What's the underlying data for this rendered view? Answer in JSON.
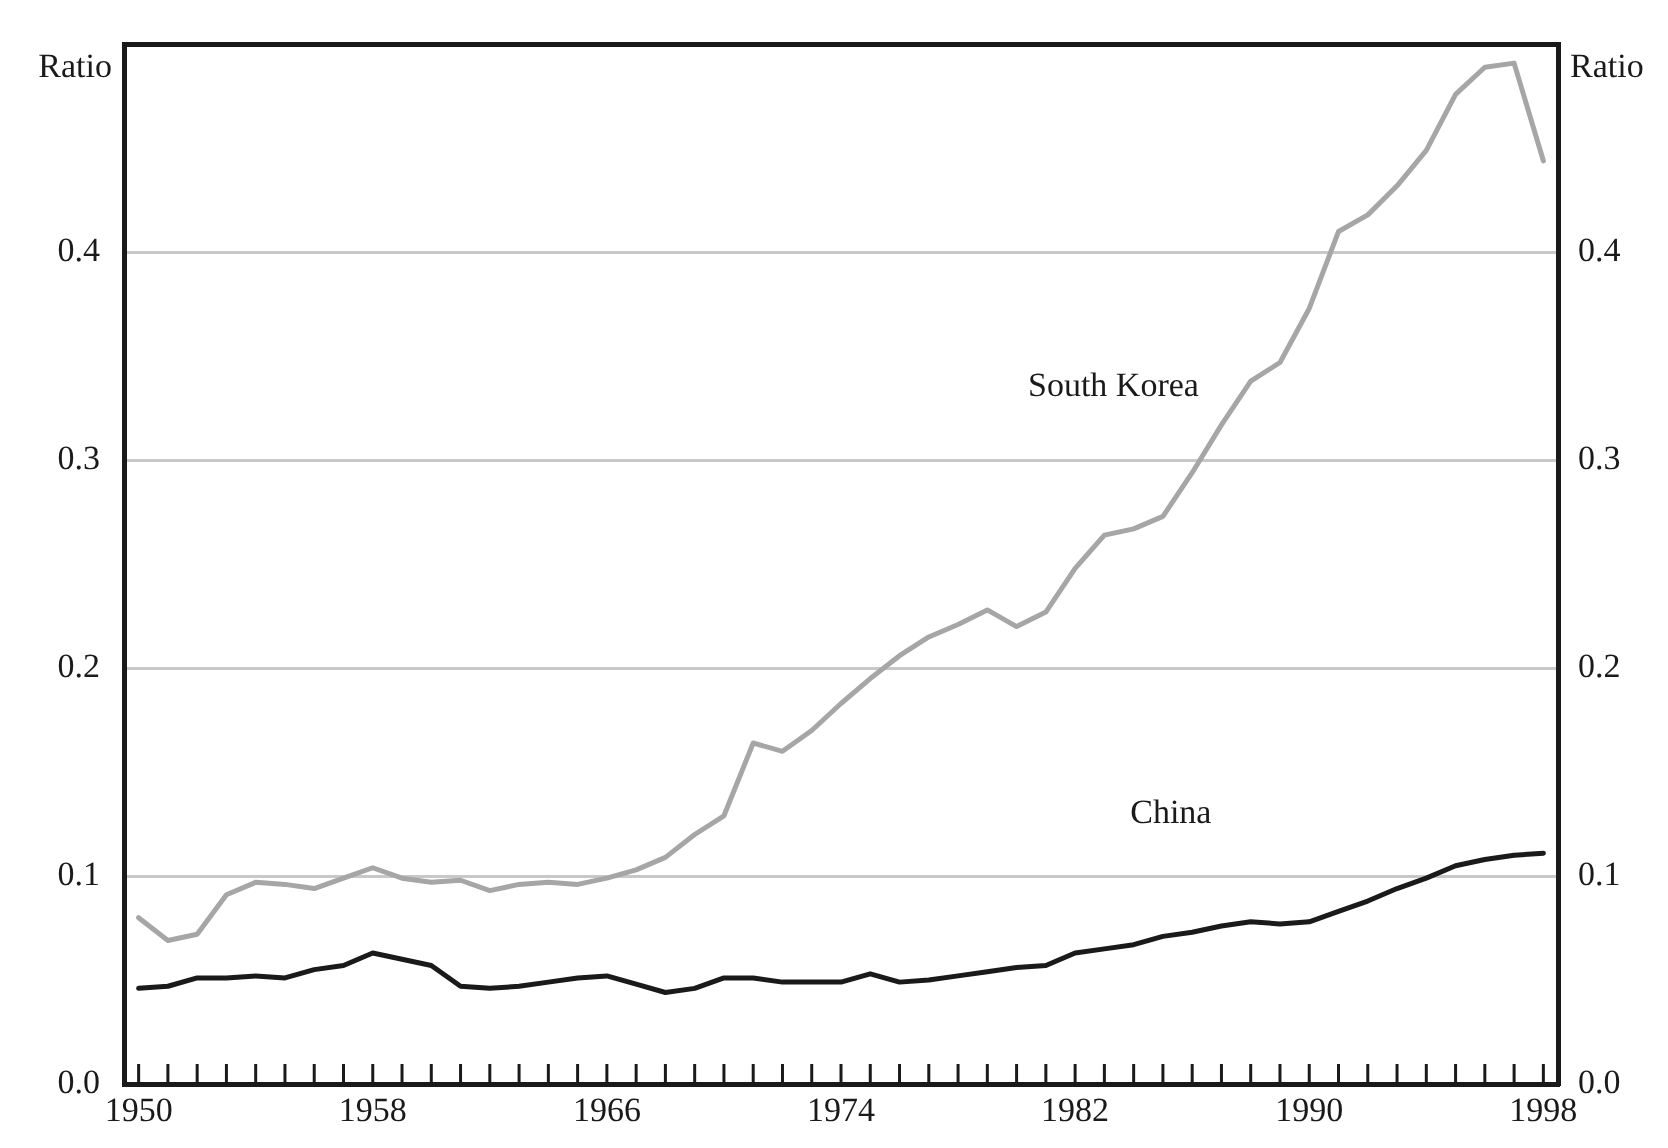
{
  "chart_data": {
    "type": "line",
    "ylabel": "Ratio",
    "y2label": "Ratio",
    "x": [
      1950,
      1951,
      1952,
      1953,
      1954,
      1955,
      1956,
      1957,
      1958,
      1959,
      1960,
      1961,
      1962,
      1963,
      1964,
      1965,
      1966,
      1967,
      1968,
      1969,
      1970,
      1971,
      1972,
      1973,
      1974,
      1975,
      1976,
      1977,
      1978,
      1979,
      1980,
      1981,
      1982,
      1983,
      1984,
      1985,
      1986,
      1987,
      1988,
      1989,
      1990,
      1991,
      1992,
      1993,
      1994,
      1995,
      1996,
      1997,
      1998
    ],
    "series": [
      {
        "name": "South Korea",
        "color": "#a6a6a6",
        "values": [
          0.08,
          0.069,
          0.072,
          0.091,
          0.097,
          0.096,
          0.094,
          0.099,
          0.104,
          0.099,
          0.097,
          0.098,
          0.093,
          0.096,
          0.097,
          0.096,
          0.099,
          0.103,
          0.109,
          0.12,
          0.129,
          0.164,
          0.16,
          0.17,
          0.183,
          0.195,
          0.206,
          0.215,
          0.221,
          0.228,
          0.22,
          0.227,
          0.248,
          0.264,
          0.267,
          0.273,
          0.294,
          0.317,
          0.338,
          0.347,
          0.373,
          0.41,
          0.418,
          0.432,
          0.449,
          0.476,
          0.489,
          0.491,
          0.444
        ]
      },
      {
        "name": "China",
        "color": "#1a1a1a",
        "values": [
          0.046,
          0.047,
          0.051,
          0.051,
          0.052,
          0.051,
          0.055,
          0.057,
          0.063,
          0.06,
          0.057,
          0.047,
          0.046,
          0.047,
          0.049,
          0.051,
          0.052,
          0.048,
          0.044,
          0.046,
          0.051,
          0.051,
          0.049,
          0.049,
          0.049,
          0.053,
          0.049,
          0.05,
          0.052,
          0.054,
          0.056,
          0.057,
          0.063,
          0.065,
          0.067,
          0.071,
          0.073,
          0.076,
          0.078,
          0.077,
          0.078,
          0.083,
          0.088,
          0.094,
          0.099,
          0.105,
          0.108,
          0.11,
          0.111
        ]
      }
    ],
    "xlim": [
      1949.5,
      1998.5
    ],
    "xticks": [
      1950,
      {
        "value": 1951,
        "label": null
      },
      {
        "value": 1952,
        "label": null
      },
      {
        "value": 1953,
        "label": null
      },
      {
        "value": 1954,
        "label": null
      },
      {
        "value": 1955,
        "label": null
      },
      {
        "value": 1956,
        "label": null
      },
      {
        "value": 1957,
        "label": null
      },
      1958,
      {
        "value": 1959,
        "label": null
      },
      {
        "value": 1960,
        "label": null
      },
      {
        "value": 1961,
        "label": null
      },
      {
        "value": 1962,
        "label": null
      },
      {
        "value": 1963,
        "label": null
      },
      {
        "value": 1964,
        "label": null
      },
      {
        "value": 1965,
        "label": null
      },
      1966,
      {
        "value": 1967,
        "label": null
      },
      {
        "value": 1968,
        "label": null
      },
      {
        "value": 1969,
        "label": null
      },
      {
        "value": 1970,
        "label": null
      },
      {
        "value": 1971,
        "label": null
      },
      {
        "value": 1972,
        "label": null
      },
      {
        "value": 1973,
        "label": null
      },
      1974,
      {
        "value": 1975,
        "label": null
      },
      {
        "value": 1976,
        "label": null
      },
      {
        "value": 1977,
        "label": null
      },
      {
        "value": 1978,
        "label": null
      },
      {
        "value": 1979,
        "label": null
      },
      {
        "value": 1980,
        "label": null
      },
      {
        "value": 1981,
        "label": null
      },
      1982,
      {
        "value": 1983,
        "label": null
      },
      {
        "value": 1984,
        "label": null
      },
      {
        "value": 1985,
        "label": null
      },
      {
        "value": 1986,
        "label": null
      },
      {
        "value": 1987,
        "label": null
      },
      {
        "value": 1988,
        "label": null
      },
      {
        "value": 1989,
        "label": null
      },
      1990,
      {
        "value": 1991,
        "label": null
      },
      {
        "value": 1992,
        "label": null
      },
      {
        "value": 1993,
        "label": null
      },
      {
        "value": 1994,
        "label": null
      },
      {
        "value": 1995,
        "label": null
      },
      {
        "value": 1996,
        "label": null
      },
      {
        "value": 1997,
        "label": null
      },
      1998
    ],
    "ylim": [
      0,
      0.5
    ],
    "yticks": [
      {
        "value": 0,
        "label": "0.0"
      },
      0.1,
      0.2,
      0.3,
      0.4
    ],
    "y2lim": [
      0,
      0.5
    ],
    "y2ticks": [
      {
        "value": 0,
        "label": "0.0"
      },
      0.1,
      0.2,
      0.3,
      0.4
    ],
    "grid": "y",
    "marker": "none",
    "line_style": "solid"
  }
}
